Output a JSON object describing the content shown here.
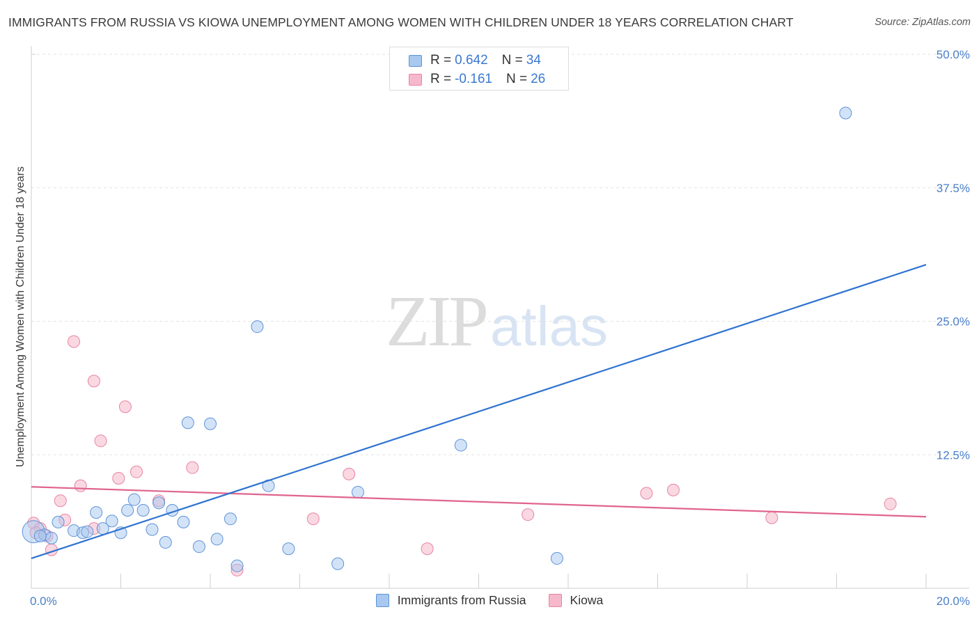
{
  "title": "IMMIGRANTS FROM RUSSIA VS KIOWA UNEMPLOYMENT AMONG WOMEN WITH CHILDREN UNDER 18 YEARS CORRELATION CHART",
  "source": "Source: ZipAtlas.com",
  "watermark": {
    "zip": "ZIP",
    "atlas": "atlas"
  },
  "legend_top": [
    {
      "r_label": "R =",
      "r_value": "0.642",
      "n_label": "N =",
      "n_value": "34",
      "color": "#a8c8f0"
    },
    {
      "r_label": "R =",
      "r_value": "-0.161",
      "n_label": "N =",
      "n_value": "26",
      "color": "#f6b8cb"
    }
  ],
  "legend_bottom": [
    {
      "label": "Immigrants from Russia",
      "color": "#a8c8f0"
    },
    {
      "label": "Kiowa",
      "color": "#f6b8cb"
    }
  ],
  "colors": {
    "blue_fill": "#a8c8f0",
    "blue_stroke": "#5e93d8",
    "blue_line": "#2e73d0",
    "pink_fill": "#f6b8cb",
    "pink_stroke": "#e884a4",
    "pink_line": "#e0648e",
    "tick": "#4a7fc9",
    "grid": "#e3e3e3"
  },
  "chart_data": {
    "type": "scatter",
    "title": "IMMIGRANTS FROM RUSSIA VS KIOWA UNEMPLOYMENT AMONG WOMEN WITH CHILDREN UNDER 18 YEARS CORRELATION CHART",
    "xlabel": "",
    "ylabel": "Unemployment Among Women with Children Under 18 years",
    "xlim": [
      0,
      20
    ],
    "ylim": [
      0,
      50
    ],
    "x_tick_labels": [
      "0.0%",
      "20.0%"
    ],
    "y_ticks": [
      12.5,
      25.0,
      37.5,
      50.0
    ],
    "y_tick_labels": [
      "12.5%",
      "25.0%",
      "37.5%",
      "50.0%"
    ],
    "series": [
      {
        "name": "Immigrants from Russia",
        "r": 0.642,
        "n": 34,
        "points": [
          {
            "x": 0.05,
            "y": 5.3,
            "big": true
          },
          {
            "x": 0.3,
            "y": 5.0
          },
          {
            "x": 0.45,
            "y": 4.7
          },
          {
            "x": 0.6,
            "y": 6.2
          },
          {
            "x": 0.95,
            "y": 5.4
          },
          {
            "x": 1.15,
            "y": 5.2
          },
          {
            "x": 1.25,
            "y": 5.3
          },
          {
            "x": 1.45,
            "y": 7.1
          },
          {
            "x": 1.6,
            "y": 5.6
          },
          {
            "x": 1.8,
            "y": 6.3
          },
          {
            "x": 2.0,
            "y": 5.2
          },
          {
            "x": 2.15,
            "y": 7.3
          },
          {
            "x": 2.3,
            "y": 8.3
          },
          {
            "x": 2.5,
            "y": 7.3
          },
          {
            "x": 2.7,
            "y": 5.5
          },
          {
            "x": 2.85,
            "y": 8.0
          },
          {
            "x": 3.0,
            "y": 4.3
          },
          {
            "x": 3.15,
            "y": 7.3
          },
          {
            "x": 3.4,
            "y": 6.2
          },
          {
            "x": 3.5,
            "y": 15.5
          },
          {
            "x": 3.75,
            "y": 3.9
          },
          {
            "x": 4.0,
            "y": 15.4
          },
          {
            "x": 4.15,
            "y": 4.6
          },
          {
            "x": 4.45,
            "y": 6.5
          },
          {
            "x": 4.6,
            "y": 2.1
          },
          {
            "x": 5.05,
            "y": 24.5
          },
          {
            "x": 5.3,
            "y": 9.6
          },
          {
            "x": 5.75,
            "y": 3.7
          },
          {
            "x": 6.85,
            "y": 2.3
          },
          {
            "x": 7.3,
            "y": 9.0
          },
          {
            "x": 9.6,
            "y": 13.4
          },
          {
            "x": 11.75,
            "y": 2.8
          },
          {
            "x": 18.2,
            "y": 44.5
          },
          {
            "x": 0.2,
            "y": 4.9
          }
        ],
        "trend": {
          "x0": 0,
          "y0": 2.8,
          "x1": 20,
          "y1": 30.3
        }
      },
      {
        "name": "Kiowa",
        "r": -0.161,
        "n": 26,
        "points": [
          {
            "x": 0.05,
            "y": 6.1
          },
          {
            "x": 0.2,
            "y": 5.6
          },
          {
            "x": 0.35,
            "y": 4.9
          },
          {
            "x": 0.45,
            "y": 3.6
          },
          {
            "x": 0.65,
            "y": 8.2
          },
          {
            "x": 0.75,
            "y": 6.4
          },
          {
            "x": 1.1,
            "y": 9.6
          },
          {
            "x": 1.4,
            "y": 5.6
          },
          {
            "x": 0.95,
            "y": 23.1
          },
          {
            "x": 1.4,
            "y": 19.4
          },
          {
            "x": 1.55,
            "y": 13.8
          },
          {
            "x": 1.95,
            "y": 10.3
          },
          {
            "x": 2.1,
            "y": 17.0
          },
          {
            "x": 2.35,
            "y": 10.9
          },
          {
            "x": 2.85,
            "y": 8.2
          },
          {
            "x": 3.6,
            "y": 11.3
          },
          {
            "x": 4.6,
            "y": 1.7
          },
          {
            "x": 6.3,
            "y": 6.5
          },
          {
            "x": 7.1,
            "y": 10.7
          },
          {
            "x": 8.85,
            "y": 3.7
          },
          {
            "x": 11.1,
            "y": 6.9
          },
          {
            "x": 13.75,
            "y": 8.9
          },
          {
            "x": 14.35,
            "y": 9.2
          },
          {
            "x": 16.55,
            "y": 6.6
          },
          {
            "x": 19.2,
            "y": 7.9
          },
          {
            "x": 0.1,
            "y": 5.2
          }
        ],
        "trend": {
          "x0": 0,
          "y0": 9.5,
          "x1": 20,
          "y1": 6.7
        }
      }
    ]
  }
}
